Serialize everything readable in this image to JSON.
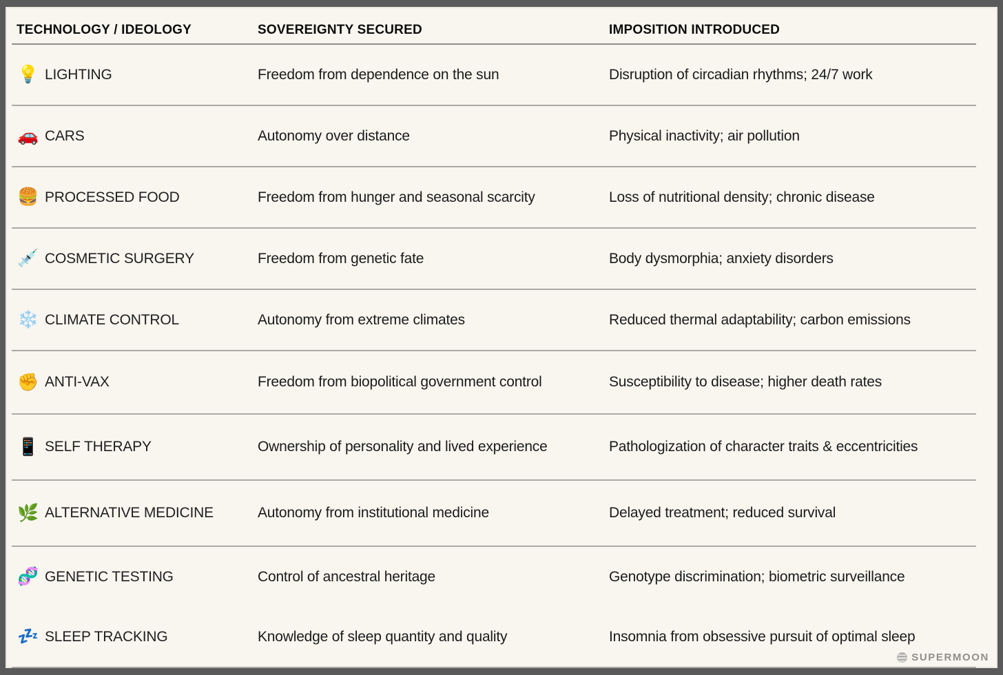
{
  "chart_data": {
    "type": "table",
    "columns": [
      "TECHNOLOGY / IDEOLOGY",
      "SOVEREIGNTY SECURED",
      "IMPOSITION INTRODUCED"
    ],
    "rows": [
      {
        "icon": "💡",
        "icon_name": "light-bulb-icon",
        "technology": "LIGHTING",
        "sovereignty": "Freedom from dependence on the sun",
        "imposition": "Disruption of circadian rhythms; 24/7 work"
      },
      {
        "icon": "🚗",
        "icon_name": "car-icon",
        "technology": "CARS",
        "sovereignty": "Autonomy over distance",
        "imposition": "Physical inactivity; air pollution"
      },
      {
        "icon": "🍔",
        "icon_name": "hamburger-icon",
        "technology": "PROCESSED FOOD",
        "sovereignty": "Freedom from hunger and seasonal scarcity",
        "imposition": "Loss of nutritional density; chronic disease"
      },
      {
        "icon": "💉",
        "icon_name": "syringe-icon",
        "technology": "COSMETIC SURGERY",
        "sovereignty": "Freedom from genetic fate",
        "imposition": "Body dysmorphia; anxiety disorders"
      },
      {
        "icon": "❄️",
        "icon_name": "snowflake-icon",
        "technology": "CLIMATE CONTROL",
        "sovereignty": "Autonomy from extreme climates",
        "imposition": "Reduced thermal adaptability; carbon emissions"
      },
      {
        "icon": "✊",
        "icon_name": "raised-fist-icon",
        "technology": "ANTI-VAX",
        "sovereignty": "Freedom from biopolitical government control",
        "imposition": "Susceptibility to disease; higher death rates"
      },
      {
        "icon": "📱",
        "icon_name": "mobile-phone-icon",
        "technology": "SELF THERAPY",
        "sovereignty": "Ownership of personality and lived experience",
        "imposition": "Pathologization of character traits & eccentricities"
      },
      {
        "icon": "🌿",
        "icon_name": "herb-icon",
        "technology": "ALTERNATIVE MEDICINE",
        "sovereignty": "Autonomy from institutional medicine",
        "imposition": "Delayed treatment; reduced survival"
      },
      {
        "icon": "🧬",
        "icon_name": "dna-icon",
        "technology": "GENETIC TESTING",
        "sovereignty": "Control of ancestral heritage",
        "imposition": "Genotype discrimination; biometric surveillance"
      },
      {
        "icon": "💤",
        "icon_name": "zzz-icon",
        "technology": "SLEEP TRACKING",
        "sovereignty": "Knowledge of sleep quantity and quality",
        "imposition": "Insomnia from obsessive pursuit of optimal sleep"
      }
    ],
    "layout": {
      "grid": "horizontal-row-dividers",
      "legend": "none"
    },
    "colors": {
      "background": "#f8f6ef",
      "frame": "#5a5a5a",
      "text": "#1b1b1b",
      "divider": "#abaaa5",
      "brand": "#8f8e8a"
    }
  },
  "footer": {
    "brand": "SUPERMOON"
  }
}
